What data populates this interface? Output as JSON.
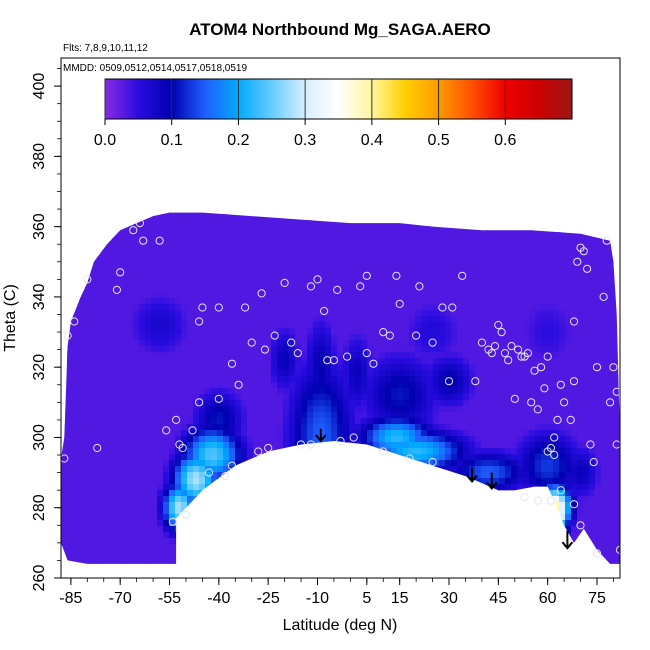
{
  "chart_data": {
    "type": "heatmap",
    "title": "ATOM4 Northbound Mg_SAGA.AERO",
    "flights_label": "Flts: 7,8,9,10,11,12",
    "dates_label": "MMDD: 0509,0512,0514,0517,0518,0519",
    "xlabel": "Latitude (deg N)",
    "ylabel": "Theta (C)",
    "xlim": [
      -88,
      82
    ],
    "ylim": [
      260,
      408
    ],
    "x_ticks": [
      -85,
      -70,
      -55,
      -40,
      -25,
      -10,
      5,
      15,
      30,
      45,
      60,
      75
    ],
    "y_ticks": [
      260,
      280,
      300,
      320,
      340,
      360,
      380,
      400
    ],
    "colorbar": {
      "ticks": [
        0.0,
        0.1,
        0.2,
        0.3,
        0.4,
        0.5,
        0.6
      ],
      "tick_labels": [
        "0.0",
        "0.1",
        "0.2",
        "0.3",
        "0.4",
        "0.5",
        "0.6"
      ],
      "min": 0.0,
      "max": 0.7,
      "stops": [
        {
          "v": 0.0,
          "color": "#8a2be2"
        },
        {
          "v": 0.05,
          "color": "#2a0ce0"
        },
        {
          "v": 0.1,
          "color": "#0000b0"
        },
        {
          "v": 0.15,
          "color": "#1f5fff"
        },
        {
          "v": 0.2,
          "color": "#00aaff"
        },
        {
          "v": 0.25,
          "color": "#66ccff"
        },
        {
          "v": 0.3,
          "color": "#d8f0ff"
        },
        {
          "v": 0.35,
          "color": "#ffffff"
        },
        {
          "v": 0.4,
          "color": "#fff5a0"
        },
        {
          "v": 0.45,
          "color": "#ffd000"
        },
        {
          "v": 0.5,
          "color": "#ff9a00"
        },
        {
          "v": 0.55,
          "color": "#ff5000"
        },
        {
          "v": 0.6,
          "color": "#ee0000"
        },
        {
          "v": 0.65,
          "color": "#cc0000"
        },
        {
          "v": 0.7,
          "color": "#9b1818"
        }
      ]
    },
    "data_region_boundary": [
      [
        -88,
        294
      ],
      [
        -87,
        300
      ],
      [
        -86,
        326
      ],
      [
        -85,
        333
      ],
      [
        -82,
        340
      ],
      [
        -80,
        344
      ],
      [
        -78,
        350
      ],
      [
        -74,
        355
      ],
      [
        -70,
        359
      ],
      [
        -65,
        361
      ],
      [
        -60,
        363
      ],
      [
        -55,
        364
      ],
      [
        -45,
        364
      ],
      [
        -30,
        363
      ],
      [
        -15,
        362
      ],
      [
        0,
        361
      ],
      [
        15,
        361
      ],
      [
        25,
        360
      ],
      [
        40,
        359
      ],
      [
        55,
        359
      ],
      [
        70,
        358
      ],
      [
        79,
        356
      ],
      [
        80,
        350
      ],
      [
        81,
        335
      ],
      [
        82,
        300
      ],
      [
        82,
        264
      ],
      [
        79,
        264
      ],
      [
        75,
        268
      ],
      [
        71,
        274
      ],
      [
        68,
        270
      ],
      [
        65,
        275
      ],
      [
        63,
        280
      ],
      [
        61,
        284
      ],
      [
        60,
        286
      ],
      [
        56,
        286
      ],
      [
        50,
        285
      ],
      [
        45,
        285
      ],
      [
        40,
        287
      ],
      [
        35,
        289
      ],
      [
        25,
        292
      ],
      [
        15,
        295
      ],
      [
        5,
        298
      ],
      [
        -5,
        299
      ],
      [
        -15,
        298
      ],
      [
        -25,
        296
      ],
      [
        -35,
        292
      ],
      [
        -45,
        285
      ],
      [
        -50,
        280
      ],
      [
        -53,
        277
      ],
      [
        -53,
        264
      ],
      [
        -70,
        264
      ],
      [
        -80,
        264
      ],
      [
        -86,
        265
      ],
      [
        -88,
        270
      ]
    ],
    "field_features": [
      {
        "x": -9,
        "y": 300,
        "v": 0.15,
        "rx": 10,
        "ry": 22
      },
      {
        "x": -9,
        "y": 320,
        "v": 0.1,
        "rx": 5,
        "ry": 14
      },
      {
        "x": -20,
        "y": 322,
        "v": 0.09,
        "rx": 5,
        "ry": 10
      },
      {
        "x": 2,
        "y": 318,
        "v": 0.09,
        "rx": 5,
        "ry": 12
      },
      {
        "x": -42,
        "y": 295,
        "v": 0.24,
        "rx": 9,
        "ry": 8
      },
      {
        "x": -47,
        "y": 288,
        "v": 0.28,
        "rx": 7,
        "ry": 8
      },
      {
        "x": -52,
        "y": 280,
        "v": 0.28,
        "rx": 5,
        "ry": 7
      },
      {
        "x": -40,
        "y": 305,
        "v": 0.11,
        "rx": 8,
        "ry": 9
      },
      {
        "x": -58,
        "y": 332,
        "v": 0.07,
        "rx": 10,
        "ry": 10
      },
      {
        "x": 14,
        "y": 300,
        "v": 0.22,
        "rx": 11,
        "ry": 6
      },
      {
        "x": 20,
        "y": 296,
        "v": 0.22,
        "rx": 15,
        "ry": 6
      },
      {
        "x": 15,
        "y": 312,
        "v": 0.11,
        "rx": 12,
        "ry": 12
      },
      {
        "x": 30,
        "y": 316,
        "v": 0.1,
        "rx": 8,
        "ry": 8
      },
      {
        "x": 42,
        "y": 290,
        "v": 0.15,
        "rx": 12,
        "ry": 6
      },
      {
        "x": 60,
        "y": 292,
        "v": 0.13,
        "rx": 10,
        "ry": 10
      },
      {
        "x": 62,
        "y": 280,
        "v": 0.4,
        "rx": 5,
        "ry": 6
      },
      {
        "x": 62.5,
        "y": 278,
        "v": 0.45,
        "rx": 3,
        "ry": 4
      },
      {
        "x": 61,
        "y": 275,
        "v": 0.26,
        "rx": 5,
        "ry": 5
      },
      {
        "x": 70,
        "y": 290,
        "v": 0.09,
        "rx": 6,
        "ry": 8
      },
      {
        "x": 25,
        "y": 330,
        "v": 0.06,
        "rx": 10,
        "ry": 10
      },
      {
        "x": 60,
        "y": 330,
        "v": 0.05,
        "rx": 10,
        "ry": 12
      }
    ],
    "sample_points": [
      [
        -87,
        294
      ],
      [
        -86,
        329
      ],
      [
        -84,
        333
      ],
      [
        -80,
        345
      ],
      [
        -77,
        297
      ],
      [
        -71,
        342
      ],
      [
        -70,
        347
      ],
      [
        -66,
        359
      ],
      [
        -64,
        361
      ],
      [
        -63,
        356
      ],
      [
        -58,
        356
      ],
      [
        -56,
        302
      ],
      [
        -53,
        305
      ],
      [
        -52,
        298
      ],
      [
        -51,
        297
      ],
      [
        -50,
        278
      ],
      [
        -48,
        302
      ],
      [
        -46,
        310
      ],
      [
        -46,
        333
      ],
      [
        -45,
        337
      ],
      [
        -43,
        290
      ],
      [
        -40,
        311
      ],
      [
        -40,
        337
      ],
      [
        -38,
        289
      ],
      [
        -36,
        321
      ],
      [
        -34,
        315
      ],
      [
        -32,
        337
      ],
      [
        -30,
        327
      ],
      [
        -28,
        296
      ],
      [
        -27,
        341
      ],
      [
        -26,
        325
      ],
      [
        -25,
        297
      ],
      [
        -23,
        329
      ],
      [
        -20,
        344
      ],
      [
        -18,
        327
      ],
      [
        -16,
        324
      ],
      [
        -15,
        298
      ],
      [
        -12,
        343
      ],
      [
        -10,
        345
      ],
      [
        -8,
        336
      ],
      [
        -7,
        322
      ],
      [
        -5,
        322
      ],
      [
        -4,
        342
      ],
      [
        -1,
        323
      ],
      [
        1,
        300
      ],
      [
        3,
        343
      ],
      [
        5,
        346
      ],
      [
        5,
        324
      ],
      [
        7,
        321
      ],
      [
        10,
        330
      ],
      [
        12,
        329
      ],
      [
        14,
        346
      ],
      [
        15,
        338
      ],
      [
        20,
        329
      ],
      [
        21,
        343
      ],
      [
        25,
        327
      ],
      [
        28,
        337
      ],
      [
        30,
        316
      ],
      [
        31,
        337
      ],
      [
        34,
        346
      ],
      [
        38,
        316
      ],
      [
        40,
        327
      ],
      [
        42,
        325
      ],
      [
        43,
        324
      ],
      [
        44,
        326
      ],
      [
        45,
        332
      ],
      [
        46,
        330
      ],
      [
        47,
        324
      ],
      [
        48,
        322
      ],
      [
        49,
        326
      ],
      [
        50,
        311
      ],
      [
        51,
        325
      ],
      [
        52,
        323
      ],
      [
        53,
        323
      ],
      [
        54,
        324
      ],
      [
        55,
        310
      ],
      [
        56,
        319
      ],
      [
        57,
        308
      ],
      [
        58,
        320
      ],
      [
        59,
        314
      ],
      [
        60,
        323
      ],
      [
        60,
        296
      ],
      [
        61,
        297
      ],
      [
        62,
        295
      ],
      [
        62,
        300
      ],
      [
        63,
        305
      ],
      [
        64,
        315
      ],
      [
        65,
        310
      ],
      [
        67,
        305
      ],
      [
        68,
        316
      ],
      [
        68,
        333
      ],
      [
        69,
        350
      ],
      [
        70,
        354
      ],
      [
        71,
        353
      ],
      [
        72,
        348
      ],
      [
        73,
        298
      ],
      [
        74,
        293
      ],
      [
        75,
        320
      ],
      [
        77,
        340
      ],
      [
        78,
        356
      ],
      [
        79,
        310
      ],
      [
        80,
        320
      ],
      [
        81,
        313
      ],
      [
        81,
        298
      ],
      [
        82,
        268
      ],
      [
        75,
        267
      ],
      [
        70,
        275
      ],
      [
        68,
        281
      ],
      [
        64,
        285
      ],
      [
        61,
        282
      ],
      [
        57,
        282
      ],
      [
        53,
        283
      ],
      [
        25,
        293
      ],
      [
        18,
        294
      ],
      [
        10,
        296
      ],
      [
        -3,
        299
      ],
      [
        -12,
        298
      ],
      [
        -36,
        292
      ],
      [
        -54,
        276
      ]
    ],
    "arrows": [
      {
        "x": -9,
        "y_top": 302.5,
        "y_bottom": 299
      },
      {
        "x": 37,
        "y_top": 291.5,
        "y_bottom": 287.5
      },
      {
        "x": 43,
        "y_top": 290,
        "y_bottom": 285.5
      },
      {
        "x": 66,
        "y_top": 273.5,
        "y_bottom": 268.5
      }
    ]
  }
}
